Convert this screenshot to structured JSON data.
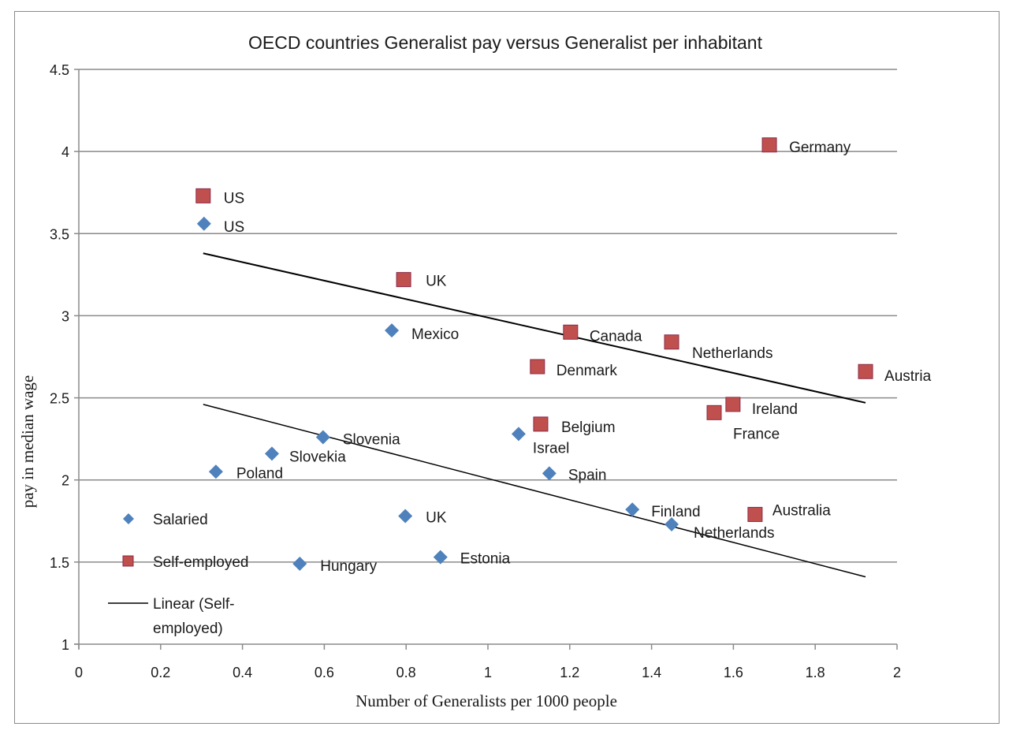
{
  "chart_data": {
    "type": "scatter",
    "title": "OECD countries Generalist pay versus Generalist per inhabitant",
    "xlabel": "Number of Generalists per 1000  people",
    "ylabel": "pay in median wage",
    "xlim": [
      0,
      2
    ],
    "ylim": [
      1,
      4.5
    ],
    "xticks": [
      "0",
      "0.2",
      "0.4",
      "0.6",
      "0.8",
      "1",
      "1.2",
      "1.4",
      "1.6",
      "1.8",
      "2"
    ],
    "yticks": [
      "1",
      "1.5",
      "2",
      "2.5",
      "3",
      "3.5",
      "4",
      "4.5"
    ],
    "grid": "horizontal",
    "legend_placement": "bottom-left inside",
    "colors": {
      "salaried": "#4f81bd",
      "self_employed": "#c0504d",
      "trend": "#000000",
      "grid": "#888888"
    },
    "series": [
      {
        "name": "Salaried",
        "marker": "diamond",
        "points": [
          {
            "label": "US",
            "x": 0.306,
            "y": 3.56
          },
          {
            "label": "Mexico",
            "x": 0.765,
            "y": 2.91
          },
          {
            "label": "Slovenia",
            "x": 0.597,
            "y": 2.26
          },
          {
            "label": "Slovekia",
            "x": 0.472,
            "y": 2.16
          },
          {
            "label": "Poland",
            "x": 0.335,
            "y": 2.05
          },
          {
            "label": "Israel",
            "x": 1.075,
            "y": 2.28
          },
          {
            "label": "Spain",
            "x": 1.15,
            "y": 2.04
          },
          {
            "label": "UK",
            "x": 0.798,
            "y": 1.78
          },
          {
            "label": "Finland",
            "x": 1.353,
            "y": 1.82
          },
          {
            "label": "Netherlands",
            "x": 1.449,
            "y": 1.73
          },
          {
            "label": "Estonia",
            "x": 0.884,
            "y": 1.53
          },
          {
            "label": "Hungary",
            "x": 0.54,
            "y": 1.49
          }
        ]
      },
      {
        "name": "Self-employed",
        "marker": "square",
        "points": [
          {
            "label": "US",
            "x": 0.304,
            "y": 3.73
          },
          {
            "label": "Germany",
            "x": 1.688,
            "y": 4.04
          },
          {
            "label": "UK",
            "x": 0.794,
            "y": 3.22
          },
          {
            "label": "Canada",
            "x": 1.202,
            "y": 2.9
          },
          {
            "label": "Netherlands",
            "x": 1.449,
            "y": 2.84
          },
          {
            "label": "Denmark",
            "x": 1.121,
            "y": 2.69
          },
          {
            "label": "Austria",
            "x": 1.923,
            "y": 2.66
          },
          {
            "label": "Ireland",
            "x": 1.599,
            "y": 2.46
          },
          {
            "label": "France",
            "x": 1.553,
            "y": 2.41
          },
          {
            "label": "Belgium",
            "x": 1.129,
            "y": 2.34
          },
          {
            "label": "Australia",
            "x": 1.653,
            "y": 1.79
          }
        ]
      }
    ],
    "trendlines": [
      {
        "name": "Linear (Self-employed)",
        "x": [
          0.304,
          1.923
        ],
        "y": [
          3.38,
          2.47
        ]
      },
      {
        "x": [
          0.304,
          1.923
        ],
        "y": [
          2.46,
          1.41
        ]
      }
    ],
    "legend": {
      "salaried": "Salaried",
      "self_employed": "Self-employed",
      "linear_line1": "Linear (Self-",
      "linear_line2": "employed)"
    }
  }
}
